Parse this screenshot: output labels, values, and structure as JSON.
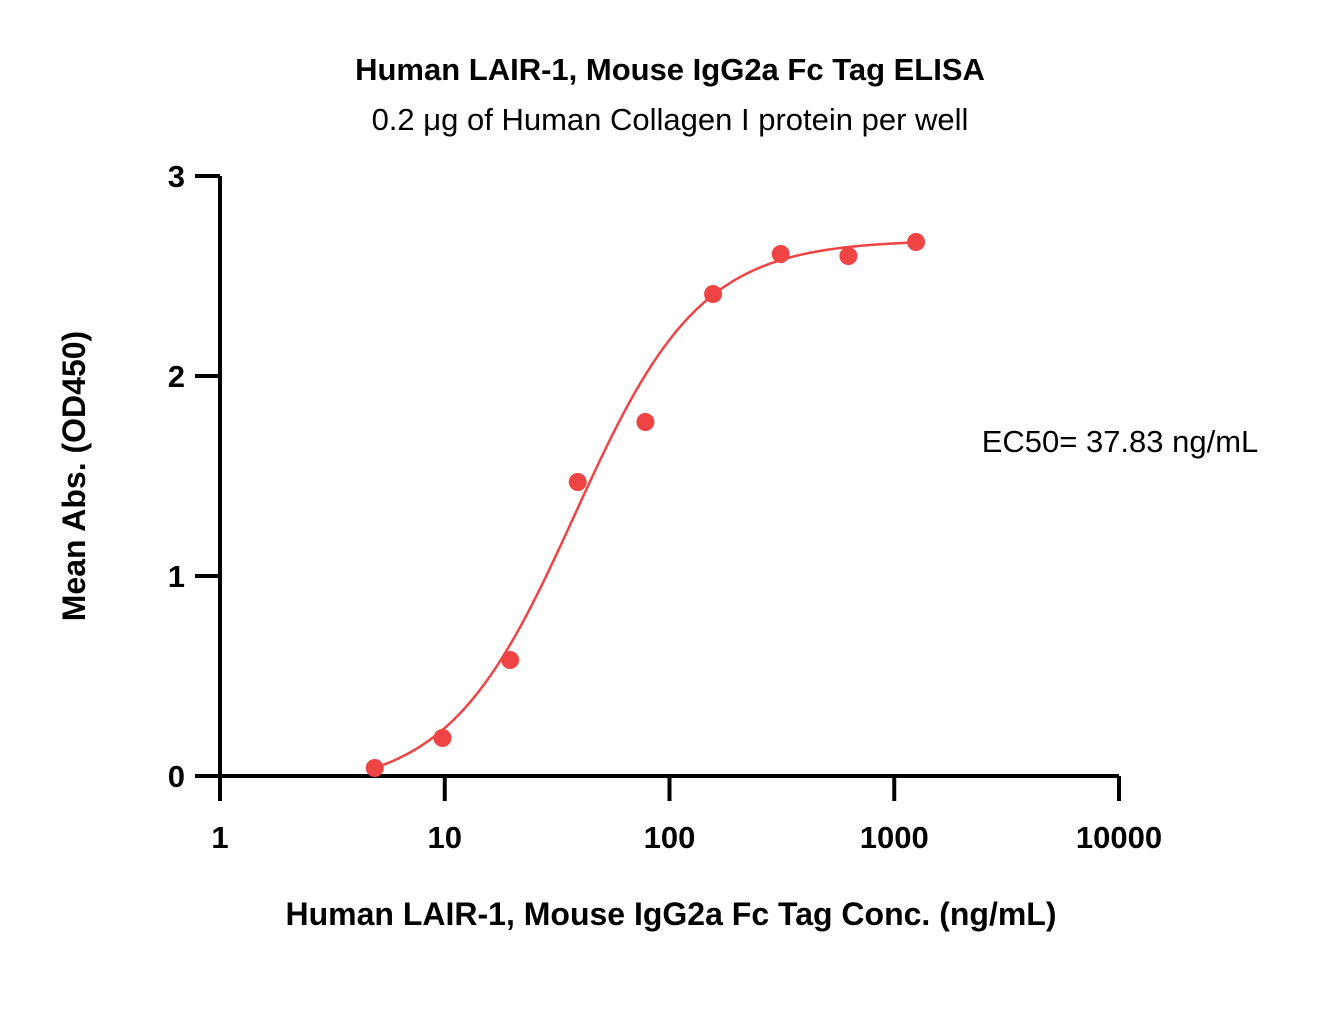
{
  "chart_data": {
    "type": "scatter",
    "title": "Human LAIR-1, Mouse IgG2a Fc Tag ELISA",
    "subtitle": "0.2 μg of Human Collagen I protein per well",
    "xlabel": "Human LAIR-1, Mouse IgG2a Fc Tag Conc. (ng/mL)",
    "ylabel": "Mean Abs. (OD450)",
    "x_scale": "log",
    "xlim": [
      1,
      10000
    ],
    "ylim": [
      0,
      3
    ],
    "x_ticks": [
      1,
      10,
      100,
      1000,
      10000
    ],
    "x_tick_labels": [
      "1",
      "10",
      "100",
      "1000",
      "10000"
    ],
    "y_ticks": [
      0,
      1,
      2,
      3
    ],
    "y_tick_labels": [
      "0",
      "1",
      "2",
      "3"
    ],
    "grid": false,
    "series": [
      {
        "color": "#ef4444",
        "points": [
          {
            "x": 4.88,
            "y": 0.04
          },
          {
            "x": 9.77,
            "y": 0.19
          },
          {
            "x": 19.53,
            "y": 0.58
          },
          {
            "x": 39.06,
            "y": 1.47
          },
          {
            "x": 78.13,
            "y": 1.77
          },
          {
            "x": 156.25,
            "y": 2.41
          },
          {
            "x": 312.5,
            "y": 2.61
          },
          {
            "x": 625,
            "y": 2.6
          },
          {
            "x": 1250,
            "y": 2.67
          }
        ],
        "fit": {
          "model": "4PL",
          "bottom": -0.07,
          "top": 2.68,
          "ec50": 37.83,
          "hill": 1.55,
          "x_range": [
            4.88,
            1250
          ]
        }
      }
    ],
    "annotation": "EC50= 37.83 ng/mL"
  }
}
